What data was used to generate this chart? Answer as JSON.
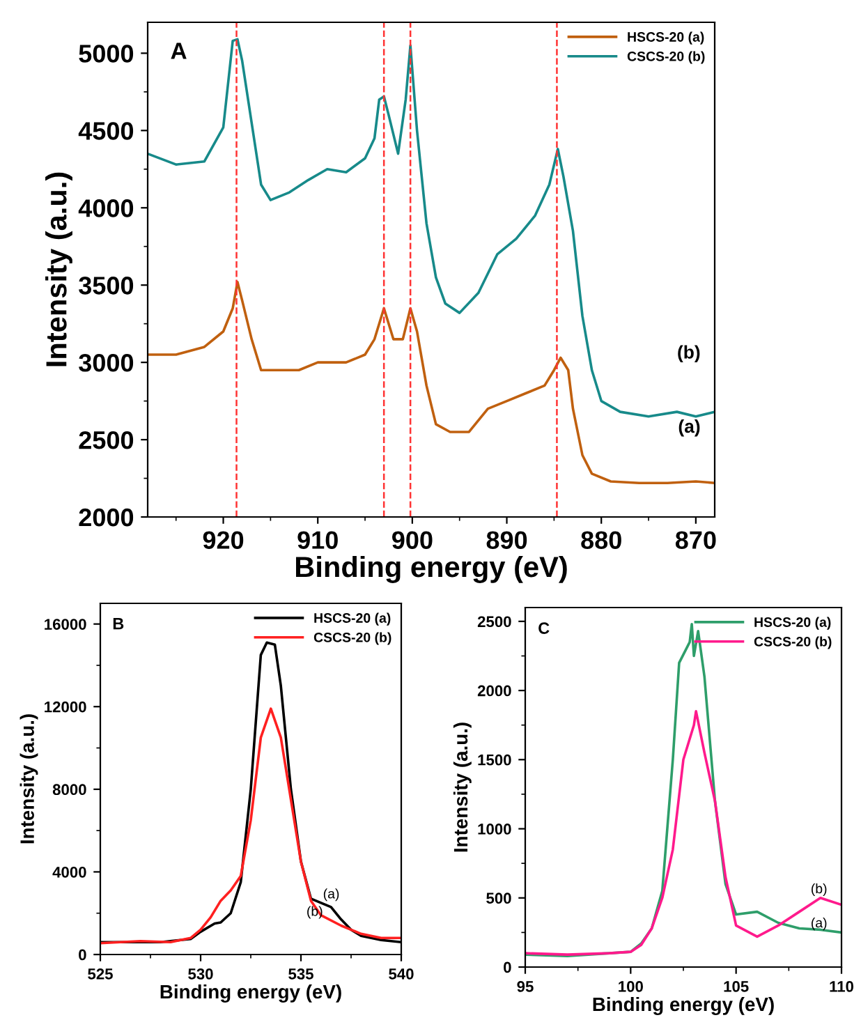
{
  "chart_data": [
    {
      "type": "line",
      "xlabel": "Binding energy (eV)",
      "ylabel": "Intensity (a.u.)",
      "xlim": [
        928,
        868
      ],
      "ylim": [
        2000,
        5200
      ],
      "xticks": [
        920,
        910,
        900,
        890,
        880,
        870
      ],
      "yticks": [
        2000,
        2500,
        3000,
        3500,
        4000,
        4500,
        5000
      ],
      "grid": false,
      "legend": "top right",
      "line_style": "solid",
      "marker": "none",
      "annotations": [
        "A",
        "(b)",
        "(a)"
      ],
      "ref_lines": [
        {
          "axis": "x",
          "value": 918.6,
          "label": null,
          "color": "#ff3333",
          "line_style": "dashed"
        },
        {
          "axis": "x",
          "value": 903.0,
          "label": null,
          "color": "#ff3333",
          "line_style": "dashed"
        },
        {
          "axis": "x",
          "value": 900.2,
          "label": null,
          "color": "#ff3333",
          "line_style": "dashed"
        },
        {
          "axis": "x",
          "value": 884.7,
          "label": null,
          "color": "#ff3333",
          "line_style": "dashed"
        }
      ],
      "series": [
        {
          "name": "HSCS-20 (a)",
          "color": "#c0600f",
          "x": [
            928,
            925,
            922,
            920,
            919,
            918.5,
            918,
            917,
            916,
            914,
            912,
            910,
            907,
            905,
            904,
            903,
            902,
            901,
            900.2,
            899.5,
            898.5,
            897.5,
            896,
            894,
            892,
            890,
            888,
            886,
            885,
            884.3,
            883.5,
            883,
            882,
            881,
            879,
            876,
            873,
            870,
            868
          ],
          "values": [
            3050,
            3050,
            3100,
            3200,
            3350,
            3520,
            3400,
            3150,
            2950,
            2950,
            2950,
            3000,
            3000,
            3050,
            3150,
            3350,
            3150,
            3150,
            3350,
            3200,
            2850,
            2600,
            2550,
            2550,
            2700,
            2750,
            2800,
            2850,
            2950,
            3030,
            2950,
            2700,
            2400,
            2280,
            2230,
            2220,
            2220,
            2230,
            2220
          ]
        },
        {
          "name": "CSCS-20 (b)",
          "color": "#178a8a",
          "x": [
            928,
            925,
            922,
            920,
            919,
            918.5,
            918,
            917,
            916,
            915,
            913,
            911,
            909,
            907,
            905,
            904,
            903.5,
            903,
            902.5,
            901.5,
            900.7,
            900.2,
            899.5,
            898.5,
            897.5,
            896.5,
            895,
            893,
            891,
            889,
            887,
            885.5,
            884.6,
            884,
            883,
            882,
            881,
            880,
            878,
            875,
            872,
            870,
            868
          ],
          "values": [
            4350,
            4280,
            4300,
            4520,
            5080,
            5090,
            4950,
            4550,
            4150,
            4050,
            4100,
            4180,
            4250,
            4230,
            4320,
            4450,
            4700,
            4720,
            4600,
            4350,
            4700,
            5050,
            4500,
            3900,
            3550,
            3380,
            3320,
            3450,
            3700,
            3800,
            3950,
            4150,
            4380,
            4200,
            3850,
            3300,
            2950,
            2750,
            2680,
            2650,
            2680,
            2650,
            2680
          ]
        }
      ]
    },
    {
      "type": "line",
      "xlabel": "Binding energy (eV)",
      "ylabel": "Intensity (a.u.)",
      "xlim": [
        525,
        540
      ],
      "ylim": [
        0,
        17000
      ],
      "xticks": [
        525,
        530,
        535,
        540
      ],
      "yticks": [
        0,
        4000,
        8000,
        12000,
        16000
      ],
      "grid": false,
      "legend": "top right",
      "line_style": "solid",
      "marker": "none",
      "annotations": [
        "B",
        "(a)",
        "(b)"
      ],
      "series": [
        {
          "name": "HSCS-20 (a)",
          "color": "#000000",
          "x": [
            525,
            528,
            529.5,
            530,
            530.7,
            531,
            531.5,
            532,
            532.5,
            533,
            533.3,
            533.7,
            534,
            534.5,
            535,
            535.5,
            536,
            536.5,
            537,
            537.5,
            538,
            539,
            540
          ],
          "values": [
            600,
            600,
            750,
            1100,
            1500,
            1550,
            2000,
            3500,
            8000,
            14500,
            15100,
            15000,
            13000,
            8000,
            4500,
            2700,
            2500,
            2300,
            1700,
            1200,
            900,
            700,
            600
          ]
        },
        {
          "name": "CSCS-20 (b)",
          "color": "#ff2020",
          "x": [
            525,
            527,
            528.5,
            529.5,
            530,
            530.5,
            531,
            531.5,
            532,
            532.5,
            533,
            533.5,
            534,
            534.5,
            535,
            535.5,
            536,
            537,
            538,
            539,
            540
          ],
          "values": [
            550,
            650,
            600,
            800,
            1200,
            1800,
            2600,
            3100,
            3800,
            6500,
            10500,
            11900,
            10500,
            7500,
            4500,
            2600,
            1900,
            1400,
            1000,
            800,
            800
          ]
        }
      ]
    },
    {
      "type": "line",
      "xlabel": "Binding energy (eV)",
      "ylabel": "Intensity (a.u.)",
      "xlim": [
        95,
        110
      ],
      "ylim": [
        0,
        2600
      ],
      "xticks": [
        95,
        100,
        105,
        110
      ],
      "yticks": [
        0,
        500,
        1000,
        1500,
        2000,
        2500
      ],
      "grid": false,
      "legend": "top right",
      "line_style": "solid",
      "marker": "none",
      "annotations": [
        "C",
        "(b)",
        "(a)"
      ],
      "series": [
        {
          "name": "HSCS-20 (a)",
          "color": "#2e9e6a",
          "x": [
            95,
            97,
            99,
            100,
            100.5,
            101,
            101.5,
            102,
            102.3,
            102.8,
            102.9,
            103,
            103.2,
            103.5,
            104,
            104.5,
            105,
            106,
            107,
            108,
            109,
            110
          ],
          "values": [
            90,
            80,
            100,
            110,
            170,
            280,
            550,
            1500,
            2200,
            2350,
            2480,
            2250,
            2430,
            2100,
            1200,
            600,
            380,
            400,
            320,
            280,
            270,
            250
          ]
        },
        {
          "name": "CSCS-20 (b)",
          "color": "#ff1a8c",
          "x": [
            95,
            97,
            99,
            100,
            100.5,
            101,
            101.5,
            102,
            102.5,
            103,
            103.1,
            103.5,
            104,
            104.5,
            105,
            106,
            107,
            108,
            109,
            110
          ],
          "values": [
            100,
            90,
            100,
            110,
            160,
            280,
            500,
            850,
            1500,
            1750,
            1850,
            1550,
            1200,
            650,
            300,
            220,
            300,
            400,
            500,
            450
          ]
        }
      ]
    }
  ]
}
